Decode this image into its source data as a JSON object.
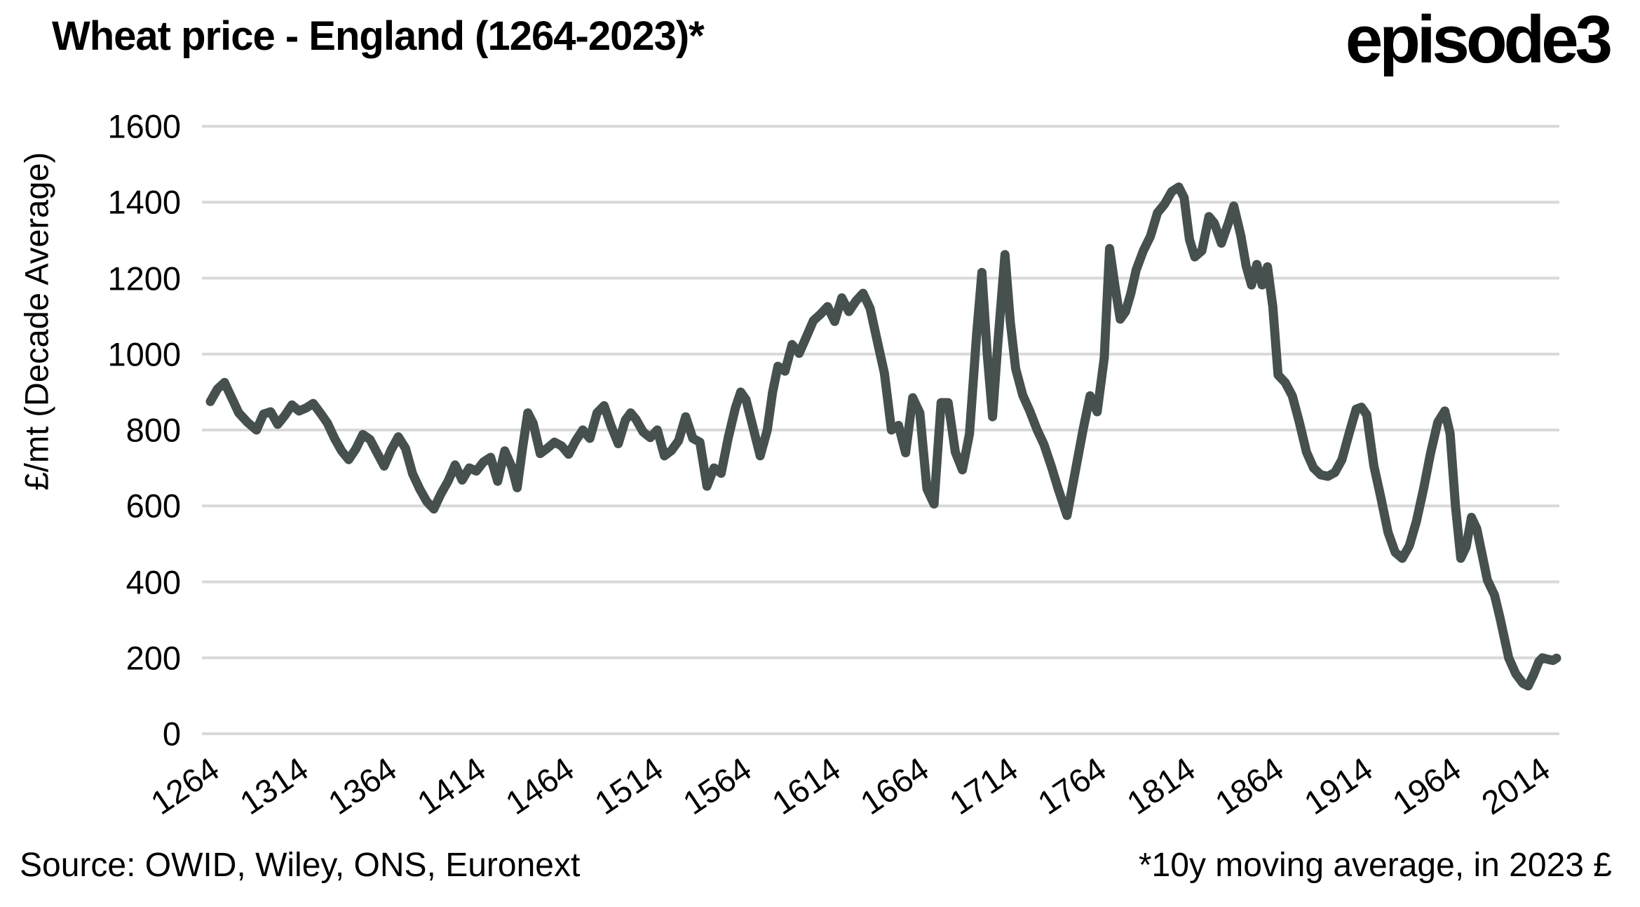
{
  "header": {
    "title": "Wheat price - England (1264-2023)*",
    "logo": "episode3"
  },
  "footer": {
    "source": "Source: OWID, Wiley, ONS, Euronext",
    "footnote": "*10y moving average, in 2023 £"
  },
  "chart_data": {
    "type": "line",
    "title": "Wheat price - England (1264-2023)*",
    "xlabel": "",
    "ylabel": "£/mt (Decade Average)",
    "ylim": [
      0,
      1600
    ],
    "xlim": [
      1264,
      2023
    ],
    "yticks": [
      1600,
      1400,
      1200,
      1000,
      800,
      600,
      400,
      200,
      0
    ],
    "xticks": [
      1264,
      1314,
      1364,
      1414,
      1464,
      1514,
      1564,
      1614,
      1664,
      1714,
      1764,
      1814,
      1864,
      1914,
      1964,
      2014
    ],
    "grid": "horizontal-only",
    "legend_position": "none",
    "line_color": "#45504F",
    "grid_color": "#D9D9D9",
    "background_color": "#FFFFFF",
    "series": [
      {
        "name": "Wheat price, 10y moving average, 2023 £ per metric tonne",
        "points": [
          [
            1264,
            875
          ],
          [
            1268,
            908
          ],
          [
            1272,
            925
          ],
          [
            1276,
            885
          ],
          [
            1280,
            845
          ],
          [
            1285,
            820
          ],
          [
            1290,
            800
          ],
          [
            1294,
            842
          ],
          [
            1298,
            848
          ],
          [
            1302,
            815
          ],
          [
            1306,
            838
          ],
          [
            1310,
            866
          ],
          [
            1314,
            850
          ],
          [
            1318,
            858
          ],
          [
            1322,
            870
          ],
          [
            1326,
            845
          ],
          [
            1330,
            818
          ],
          [
            1334,
            778
          ],
          [
            1338,
            745
          ],
          [
            1342,
            722
          ],
          [
            1346,
            750
          ],
          [
            1350,
            788
          ],
          [
            1354,
            775
          ],
          [
            1358,
            740
          ],
          [
            1362,
            705
          ],
          [
            1366,
            748
          ],
          [
            1370,
            782
          ],
          [
            1374,
            752
          ],
          [
            1378,
            685
          ],
          [
            1382,
            645
          ],
          [
            1386,
            612
          ],
          [
            1390,
            592
          ],
          [
            1394,
            632
          ],
          [
            1398,
            665
          ],
          [
            1402,
            708
          ],
          [
            1406,
            668
          ],
          [
            1410,
            700
          ],
          [
            1414,
            692
          ],
          [
            1418,
            716
          ],
          [
            1422,
            728
          ],
          [
            1426,
            665
          ],
          [
            1430,
            745
          ],
          [
            1434,
            702
          ],
          [
            1437,
            648
          ],
          [
            1440,
            752
          ],
          [
            1443,
            845
          ],
          [
            1446,
            818
          ],
          [
            1450,
            738
          ],
          [
            1454,
            752
          ],
          [
            1458,
            768
          ],
          [
            1462,
            758
          ],
          [
            1466,
            736
          ],
          [
            1470,
            772
          ],
          [
            1474,
            800
          ],
          [
            1478,
            778
          ],
          [
            1482,
            845
          ],
          [
            1486,
            864
          ],
          [
            1490,
            810
          ],
          [
            1494,
            764
          ],
          [
            1498,
            826
          ],
          [
            1501,
            845
          ],
          [
            1504,
            828
          ],
          [
            1508,
            795
          ],
          [
            1512,
            780
          ],
          [
            1516,
            800
          ],
          [
            1520,
            732
          ],
          [
            1524,
            746
          ],
          [
            1528,
            772
          ],
          [
            1532,
            835
          ],
          [
            1536,
            778
          ],
          [
            1540,
            768
          ],
          [
            1544,
            652
          ],
          [
            1548,
            700
          ],
          [
            1552,
            686
          ],
          [
            1556,
            780
          ],
          [
            1560,
            858
          ],
          [
            1563,
            900
          ],
          [
            1566,
            880
          ],
          [
            1570,
            806
          ],
          [
            1574,
            732
          ],
          [
            1578,
            800
          ],
          [
            1581,
            900
          ],
          [
            1584,
            968
          ],
          [
            1588,
            955
          ],
          [
            1592,
            1025
          ],
          [
            1596,
            1002
          ],
          [
            1600,
            1045
          ],
          [
            1604,
            1088
          ],
          [
            1608,
            1105
          ],
          [
            1612,
            1125
          ],
          [
            1616,
            1086
          ],
          [
            1620,
            1148
          ],
          [
            1624,
            1112
          ],
          [
            1628,
            1140
          ],
          [
            1632,
            1160
          ],
          [
            1636,
            1120
          ],
          [
            1640,
            1035
          ],
          [
            1644,
            950
          ],
          [
            1648,
            800
          ],
          [
            1652,
            812
          ],
          [
            1656,
            740
          ],
          [
            1660,
            885
          ],
          [
            1664,
            845
          ],
          [
            1668,
            645
          ],
          [
            1672,
            605
          ],
          [
            1676,
            872
          ],
          [
            1680,
            872
          ],
          [
            1684,
            742
          ],
          [
            1688,
            695
          ],
          [
            1692,
            790
          ],
          [
            1696,
            1050
          ],
          [
            1699,
            1215
          ],
          [
            1702,
            1000
          ],
          [
            1705,
            835
          ],
          [
            1708,
            1030
          ],
          [
            1712,
            1262
          ],
          [
            1715,
            1085
          ],
          [
            1718,
            962
          ],
          [
            1722,
            892
          ],
          [
            1726,
            850
          ],
          [
            1730,
            802
          ],
          [
            1734,
            762
          ],
          [
            1738,
            706
          ],
          [
            1742,
            645
          ],
          [
            1747,
            575
          ],
          [
            1752,
            700
          ],
          [
            1756,
            800
          ],
          [
            1760,
            890
          ],
          [
            1764,
            848
          ],
          [
            1768,
            990
          ],
          [
            1771,
            1278
          ],
          [
            1774,
            1180
          ],
          [
            1777,
            1092
          ],
          [
            1780,
            1112
          ],
          [
            1783,
            1160
          ],
          [
            1786,
            1222
          ],
          [
            1790,
            1272
          ],
          [
            1794,
            1310
          ],
          [
            1798,
            1372
          ],
          [
            1802,
            1395
          ],
          [
            1806,
            1428
          ],
          [
            1810,
            1440
          ],
          [
            1813,
            1412
          ],
          [
            1816,
            1302
          ],
          [
            1819,
            1256
          ],
          [
            1823,
            1272
          ],
          [
            1827,
            1362
          ],
          [
            1830,
            1345
          ],
          [
            1834,
            1292
          ],
          [
            1838,
            1345
          ],
          [
            1841,
            1390
          ],
          [
            1845,
            1312
          ],
          [
            1848,
            1232
          ],
          [
            1851,
            1182
          ],
          [
            1854,
            1236
          ],
          [
            1857,
            1182
          ],
          [
            1860,
            1230
          ],
          [
            1863,
            1125
          ],
          [
            1866,
            945
          ],
          [
            1870,
            925
          ],
          [
            1874,
            890
          ],
          [
            1878,
            820
          ],
          [
            1882,
            742
          ],
          [
            1886,
            700
          ],
          [
            1890,
            682
          ],
          [
            1894,
            678
          ],
          [
            1898,
            688
          ],
          [
            1902,
            722
          ],
          [
            1906,
            790
          ],
          [
            1910,
            855
          ],
          [
            1913,
            860
          ],
          [
            1916,
            840
          ],
          [
            1920,
            706
          ],
          [
            1924,
            620
          ],
          [
            1928,
            530
          ],
          [
            1932,
            478
          ],
          [
            1936,
            462
          ],
          [
            1940,
            495
          ],
          [
            1944,
            560
          ],
          [
            1948,
            645
          ],
          [
            1952,
            740
          ],
          [
            1956,
            820
          ],
          [
            1960,
            850
          ],
          [
            1963,
            790
          ],
          [
            1966,
            600
          ],
          [
            1969,
            462
          ],
          [
            1972,
            492
          ],
          [
            1975,
            570
          ],
          [
            1978,
            540
          ],
          [
            1981,
            472
          ],
          [
            1984,
            405
          ],
          [
            1988,
            365
          ],
          [
            1991,
            307
          ],
          [
            1996,
            200
          ],
          [
            2000,
            158
          ],
          [
            2004,
            133
          ],
          [
            2007,
            126
          ],
          [
            2010,
            155
          ],
          [
            2013,
            190
          ],
          [
            2015,
            200
          ],
          [
            2018,
            196
          ],
          [
            2021,
            193
          ],
          [
            2023,
            199
          ]
        ]
      }
    ]
  }
}
